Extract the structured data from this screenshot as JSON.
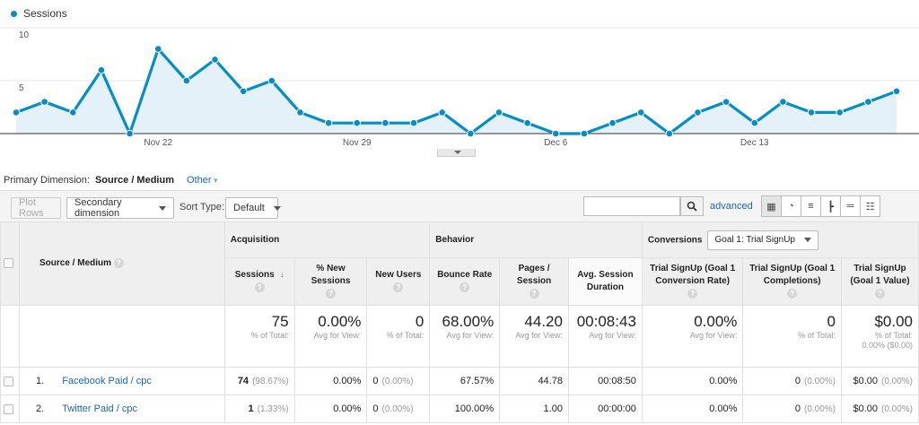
{
  "chart": {
    "legend": "Sessions",
    "y_ticks": [
      "10",
      "5"
    ],
    "x_ticks": [
      "Nov 22",
      "Nov 29",
      "Dec 6",
      "Dec 13"
    ]
  },
  "chart_data": {
    "type": "area",
    "series": [
      {
        "name": "Sessions",
        "values": [
          2,
          3,
          2,
          6,
          0,
          8,
          5,
          7,
          4,
          5,
          2,
          1,
          1,
          1,
          1,
          2,
          0,
          2,
          1,
          0,
          0,
          1,
          2,
          0,
          2,
          3,
          1,
          3,
          2,
          2,
          3,
          4
        ]
      }
    ],
    "x_ticks": [
      "Nov 22",
      "Nov 29",
      "Dec 6",
      "Dec 13"
    ],
    "ylim": [
      0,
      10
    ],
    "y_ticks": [
      5,
      10
    ],
    "color": "#058dc7"
  },
  "primary": {
    "label": "Primary Dimension:",
    "value": "Source / Medium",
    "other": "Other"
  },
  "toolbar": {
    "plot_rows": "Plot Rows",
    "secondary": "Secondary dimension",
    "sort_label": "Sort Type:",
    "sort_value": "Default",
    "advanced": "advanced"
  },
  "table": {
    "dim_header": "Source / Medium",
    "groups": {
      "acquisition": "Acquisition",
      "behavior": "Behavior",
      "conversions": "Conversions",
      "goal": "Goal 1: Trial SignUp"
    },
    "cols": [
      "Sessions",
      "% New Sessions",
      "New Users",
      "Bounce Rate",
      "Pages / Session",
      "Avg. Session Duration",
      "Trial SignUp (Goal 1 Conversion Rate)",
      "Trial SignUp (Goal 1 Completions)",
      "Trial SignUp (Goal 1 Value)"
    ],
    "totals": [
      {
        "v": "75",
        "s": "% of Total:"
      },
      {
        "v": "0.00%",
        "s": "Avg for View:"
      },
      {
        "v": "0",
        "s": "% of Total:"
      },
      {
        "v": "68.00%",
        "s": "Avg for View:"
      },
      {
        "v": "44.20",
        "s": "Avg for View:"
      },
      {
        "v": "00:08:43",
        "s": "Avg for View:"
      },
      {
        "v": "0.00%",
        "s": "Avg for View:"
      },
      {
        "v": "0",
        "s": "% of Total:"
      },
      {
        "v": "$0.00",
        "s": "% of Total:",
        "s2": "0.00% ($0.00)"
      }
    ],
    "rows": [
      {
        "idx": "1.",
        "src": "Facebook Paid / cpc",
        "sessions": "74",
        "sessions_pct": "(98.67%)",
        "new_sess": "0.00%",
        "new_users": "0",
        "new_users_pct": "(0.00%)",
        "bounce": "67.57%",
        "pages": "44.78",
        "dur": "00:08:50",
        "conv": "0.00%",
        "comp": "0",
        "comp_pct": "(0.00%)",
        "val": "$0.00",
        "val_pct": "(0.00%)"
      },
      {
        "idx": "2.",
        "src": "Twitter Paid / cpc",
        "sessions": "1",
        "sessions_pct": "(1.33%)",
        "new_sess": "0.00%",
        "new_users": "0",
        "new_users_pct": "(0.00%)",
        "bounce": "100.00%",
        "pages": "1.00",
        "dur": "00:00:00",
        "conv": "0.00%",
        "comp": "0",
        "comp_pct": "(0.00%)",
        "val": "$0.00",
        "val_pct": "(0.00%)"
      }
    ]
  }
}
